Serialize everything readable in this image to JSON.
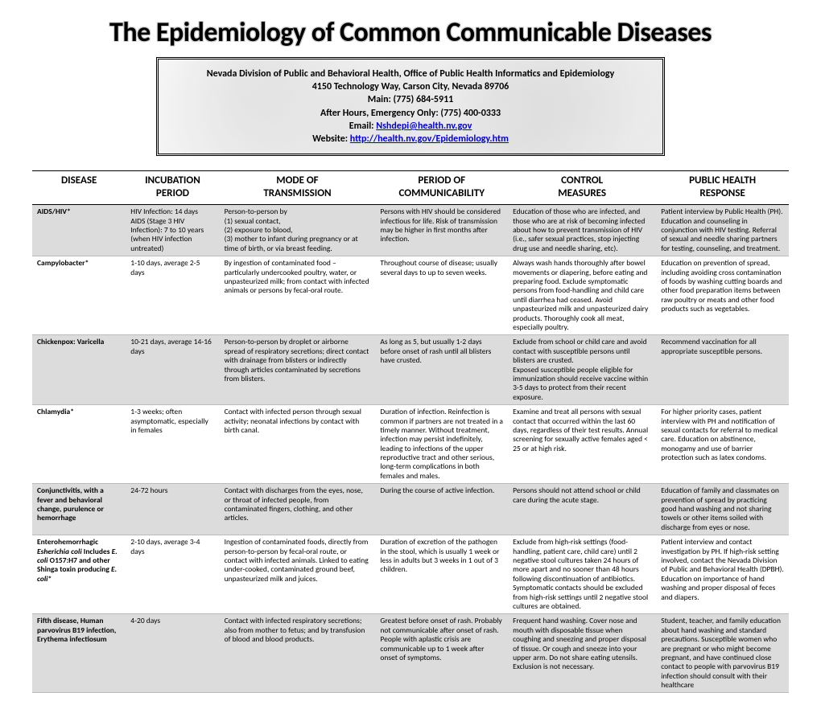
{
  "title": "The Epidemiology of Common Communicable Diseases",
  "info": {
    "org": "Nevada Division of Public and Behavioral Health, Office of Public Health Informatics and Epidemiology",
    "addr": "4150 Technology Way, Carson City, Nevada 89706",
    "main_label": "Main:  (775) 684-5911",
    "after_hours": "After Hours, Emergency Only: (775) 400-0333",
    "email_label": "Email: ",
    "email": "Nshdepi@health.nv.gov",
    "website_label": "Website: ",
    "website": "http://health.nv.gov/Epidemiology.htm"
  },
  "columns": [
    {
      "l1": "DISEASE",
      "l2": ""
    },
    {
      "l1": "INCUBATION",
      "l2": "PERIOD"
    },
    {
      "l1": "MODE OF",
      "l2": "TRANSMISSION"
    },
    {
      "l1": "PERIOD OF",
      "l2": "COMMUNICABILITY"
    },
    {
      "l1": "CONTROL",
      "l2": "MEASURES"
    },
    {
      "l1": "PUBLIC HEALTH",
      "l2": "RESPONSE"
    }
  ],
  "rows": [
    {
      "disease_html": "AIDS/HIV*",
      "incubation": "HIV Infection: 14 days\nAIDS (Stage 3 HIV Infection): 7 to 10 years (when HIV infection untreated)",
      "transmission": "Person-to-person by\n(1) sexual contact,\n(2) exposure to blood,\n(3) mother to infant during pregnancy or at time of birth, or via breast feeding.",
      "communicability": "Persons with HIV should be considered infectious for life. Risk of transmission may be higher in first months after infection.",
      "control": "Education of those who are infected, and those who are at risk of becoming infected about how to prevent transmission of HIV (i.e., safer sexual practices, stop injecting drug use and needle sharing, etc).",
      "response": "Patient interview by Public Health (PH). Education and counseling in conjunction with HIV testing. Referral of sexual and needle sharing partners for testing, counseling, and treatment."
    },
    {
      "disease_html": "Campylobacter*",
      "incubation": "1-10 days, average 2-5 days",
      "transmission": "By ingestion of contaminated food – particularly undercooked poultry, water, or unpasteurized milk; from contact with infected animals or persons by fecal-oral route.",
      "communicability": "Throughout course of disease; usually several days to up to seven weeks.",
      "control": "Always wash hands thoroughly after bowel movements or diapering, before eating and preparing food. Exclude symptomatic persons from food-handling and child care until diarrhea had ceased. Avoid unpasteurized milk and unpasteurized dairy products. Thoroughly cook all meat, especially poultry.",
      "response": "Education on prevention of spread, including avoiding cross contamination of foods by washing cutting boards and other food preparation items between raw poultry or meats and other food products such as vegetables."
    },
    {
      "disease_html": "Chickenpox: Varicella",
      "incubation": "10-21 days, average 14-16 days",
      "transmission": "Person-to-person by droplet or airborne spread of respiratory secretions; direct contact with drainage from blisters or indirectly through articles contaminated by secretions from blisters.",
      "communicability": "As long as 5, but usually 1-2 days before onset of rash until all blisters have crusted.",
      "control": "Exclude from school or child care and avoid contact with susceptible persons until blisters are crusted.\nExposed susceptible people eligible for immunization should receive vaccine within 3-5 days to protect from their recent exposure.",
      "response": "Recommend vaccination for all appropriate susceptible persons."
    },
    {
      "disease_html": "Chlamydia*",
      "incubation": "1-3 weeks; often asymptomatic, especially in females",
      "transmission": "Contact with infected person through sexual activity; neonatal infections by contact with birth canal.",
      "communicability": "Duration of infection. Reinfection is common if partners are not treated in a timely manner. Without treatment, infection may persist indefinitely, leading to infections of the upper reproductive tract and other serious, long-term complications in both females and males.",
      "control": "Examine and treat all persons with sexual contact that occurred within the last 60 days, regardless of their test results. Annual screening for sexually active females aged < 25 or at high risk.",
      "response": "For higher priority cases, patient interview with PH and notification of sexual contacts for referral to medical care. Education on abstinence, monogamy and use of barrier protection such as latex condoms."
    },
    {
      "disease_html": "Conjunctivitis, with a fever and behavioral change, purulence or hemorrhage",
      "incubation": "24-72 hours",
      "transmission": "Contact with discharges from the eyes, nose, or throat of infected people, from contaminated fingers, clothing, and other articles.",
      "communicability": "During the course of active infection.",
      "control": "Persons should not attend school or child care during the acute stage.",
      "response": "Education of family and classmates on prevention of spread by practicing good hand washing and not sharing towels or other items soiled with discharge from eyes or nose."
    },
    {
      "disease_html": "Enterohemorrhagic <span class=\"italic\">Esherichia coli</span> Includes <span class=\"italic\">E. coli</span> O157:H7 and other Shinga toxin producing <span class=\"italic\">E. coli</span>*",
      "incubation": "2-10 days, average 3-4 days",
      "transmission": "Ingestion of contaminated foods, directly from person-to-person by fecal-oral route, or contact with infected animals. Linked to eating under-cooked, contaminated ground beef, unpasteurized milk and juices.",
      "communicability": "Duration of excretion of the pathogen in the stool, which is usually 1 week or less in adults but 3 weeks in 1 out of 3 children.",
      "control": "Exclude from high-risk settings (food-handling, patient care, child care) until 2 negative stool cultures taken 24 hours of more apart and no sooner than 48 hours following discontinuation of antibiotics. Symptomatic contacts should be excluded from high-risk settings until 2 negative stool cultures are obtained.",
      "response": "Patient interview and contact investigation by PH. If high-risk setting involved, contact the Nevada Division of Public and Behavioral Health (DPBH). Education on importance of hand washing and proper disposal of feces and diapers."
    },
    {
      "disease_html": "Fifth disease, Human parvovirus B19 infection, Erythema infectiosum",
      "incubation": "4-20 days",
      "transmission": "Contact with infected respiratory secretions; also from mother to fetus; and by transfusion of blood and blood products.",
      "communicability": "Greatest before onset of rash. Probably not communicable after onset of rash. People with aplastic crisis are communicable up to 1 week after onset of symptoms.",
      "control": "Frequent hand washing. Cover nose and mouth with disposable tissue when coughing and sneezing and proper disposal of tissue. Or cough and sneeze into your upper arm. Do not share eating utensils. Exclusion is not necessary.",
      "response": "Student, teacher, and family education about hand washing and standard precautions. Susceptible women who are pregnant or who might become pregnant, and have continued close contact to people with parvovirus B19 infection should consult with their healthcare"
    }
  ],
  "style": {
    "title_fontsize": 34,
    "header_fontsize": 13,
    "body_fontsize": 9.5,
    "alt_row_bg": "#dcdcdc",
    "border_color": "#000000",
    "row_border_color": "#bbbbbb",
    "background": "#ffffff",
    "link_color": "#0000cc",
    "col_widths_pct": [
      12,
      12,
      20,
      17,
      19,
      17
    ]
  }
}
